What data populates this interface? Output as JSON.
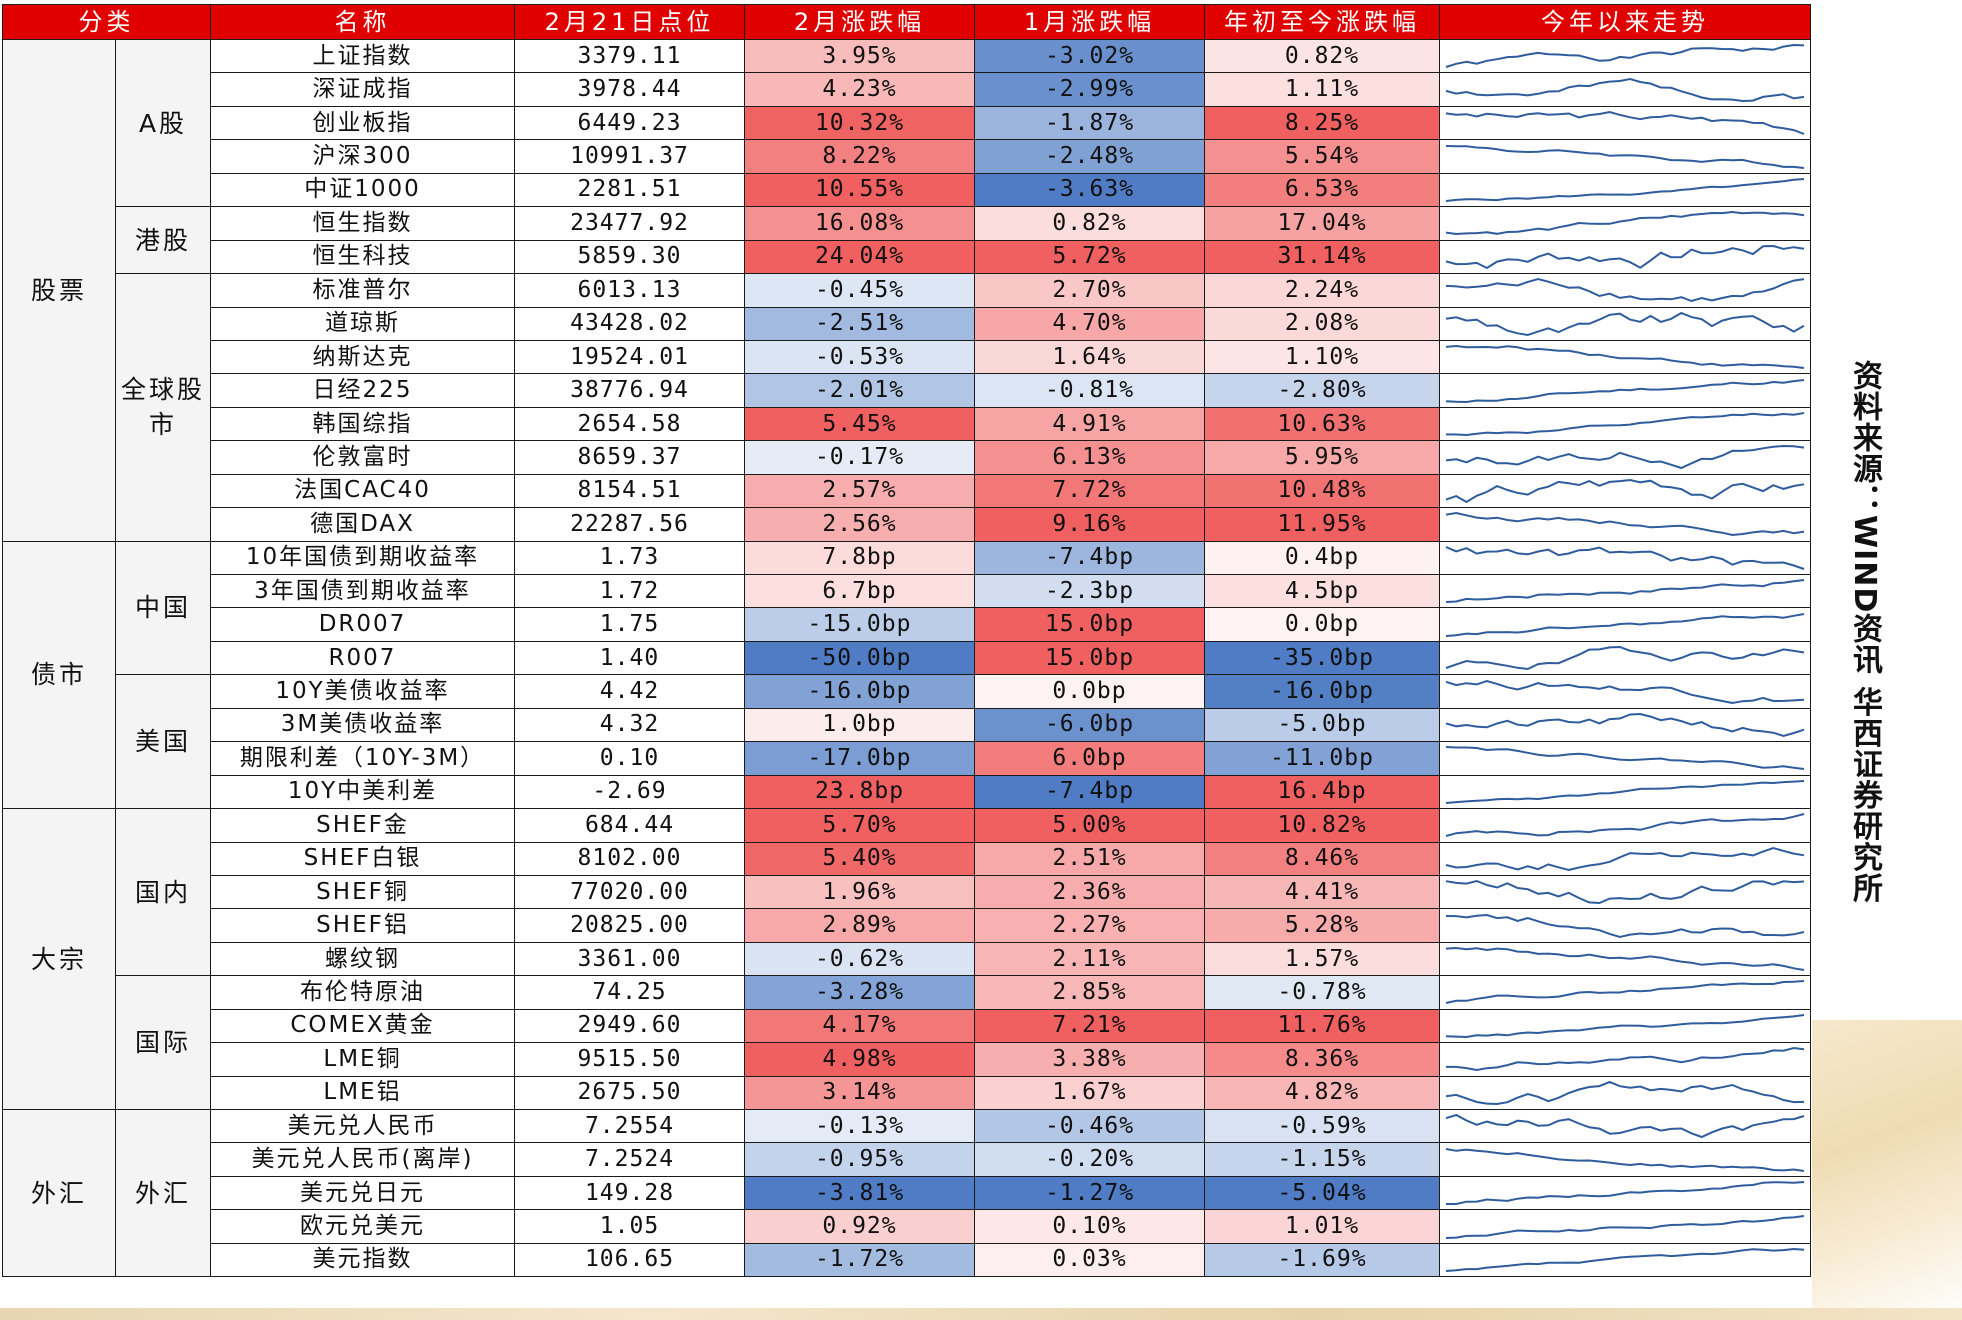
{
  "headers": [
    "分类",
    "名称",
    "2月21日点位",
    "2月涨跌幅",
    "1月涨跌幅",
    "年初至今涨跌幅",
    "今年以来走势"
  ],
  "source_note": "资料来源：WIND资讯 华西证券研究所",
  "colors": {
    "header_bg": "#e00000",
    "header_text": "#ffffff",
    "sparkline": "#2f5c9c",
    "neg_max": "#4f7cc4",
    "pos_max": "#f06060"
  },
  "categories": [
    {
      "label": "股票",
      "rows": 15,
      "subs": [
        {
          "label": "A股",
          "rows": 5
        },
        {
          "label": "港股",
          "rows": 2
        },
        {
          "label": "全球股市",
          "rows": 8
        }
      ]
    },
    {
      "label": "债市",
      "rows": 8,
      "subs": [
        {
          "label": "中国",
          "rows": 4
        },
        {
          "label": "美国",
          "rows": 4
        }
      ]
    },
    {
      "label": "大宗",
      "rows": 9,
      "subs": [
        {
          "label": "国内",
          "rows": 5
        },
        {
          "label": "国际",
          "rows": 4
        }
      ]
    },
    {
      "label": "外汇",
      "rows": 5,
      "subs": [
        {
          "label": "外汇",
          "rows": 5
        }
      ]
    }
  ],
  "rows": [
    {
      "name": "上证指数",
      "level": "3379.11",
      "feb": "3.95%",
      "jan": "-3.02%",
      "ytd": "0.82%"
    },
    {
      "name": "深证成指",
      "level": "3978.44",
      "feb": "4.23%",
      "jan": "-2.99%",
      "ytd": "1.11%"
    },
    {
      "name": "创业板指",
      "level": "6449.23",
      "feb": "10.32%",
      "jan": "-1.87%",
      "ytd": "8.25%"
    },
    {
      "name": "沪深300",
      "level": "10991.37",
      "feb": "8.22%",
      "jan": "-2.48%",
      "ytd": "5.54%"
    },
    {
      "name": "中证1000",
      "level": "2281.51",
      "feb": "10.55%",
      "jan": "-3.63%",
      "ytd": "6.53%"
    },
    {
      "name": "恒生指数",
      "level": "23477.92",
      "feb": "16.08%",
      "jan": "0.82%",
      "ytd": "17.04%"
    },
    {
      "name": "恒生科技",
      "level": "5859.30",
      "feb": "24.04%",
      "jan": "5.72%",
      "ytd": "31.14%"
    },
    {
      "name": "标准普尔",
      "level": "6013.13",
      "feb": "-0.45%",
      "jan": "2.70%",
      "ytd": "2.24%"
    },
    {
      "name": "道琼斯",
      "level": "43428.02",
      "feb": "-2.51%",
      "jan": "4.70%",
      "ytd": "2.08%"
    },
    {
      "name": "纳斯达克",
      "level": "19524.01",
      "feb": "-0.53%",
      "jan": "1.64%",
      "ytd": "1.10%"
    },
    {
      "name": "日经225",
      "level": "38776.94",
      "feb": "-2.01%",
      "jan": "-0.81%",
      "ytd": "-2.80%"
    },
    {
      "name": "韩国综指",
      "level": "2654.58",
      "feb": "5.45%",
      "jan": "4.91%",
      "ytd": "10.63%"
    },
    {
      "name": "伦敦富时",
      "level": "8659.37",
      "feb": "-0.17%",
      "jan": "6.13%",
      "ytd": "5.95%"
    },
    {
      "name": "法国CAC40",
      "level": "8154.51",
      "feb": "2.57%",
      "jan": "7.72%",
      "ytd": "10.48%"
    },
    {
      "name": "德国DAX",
      "level": "22287.56",
      "feb": "2.56%",
      "jan": "9.16%",
      "ytd": "11.95%"
    },
    {
      "name": "10年国债到期收益率",
      "level": "1.73",
      "feb": "7.8bp",
      "jan": "-7.4bp",
      "ytd": "0.4bp"
    },
    {
      "name": "3年国债到期收益率",
      "level": "1.72",
      "feb": "6.7bp",
      "jan": "-2.3bp",
      "ytd": "4.5bp"
    },
    {
      "name": "DR007",
      "level": "1.75",
      "feb": "-15.0bp",
      "jan": "15.0bp",
      "ytd": "0.0bp"
    },
    {
      "name": "R007",
      "level": "1.40",
      "feb": "-50.0bp",
      "jan": "15.0bp",
      "ytd": "-35.0bp"
    },
    {
      "name": "10Y美债收益率",
      "level": "4.42",
      "feb": "-16.0bp",
      "jan": "0.0bp",
      "ytd": "-16.0bp"
    },
    {
      "name": "3M美债收益率",
      "level": "4.32",
      "feb": "1.0bp",
      "jan": "-6.0bp",
      "ytd": "-5.0bp"
    },
    {
      "name": "期限利差（10Y-3M）",
      "level": "0.10",
      "feb": "-17.0bp",
      "jan": "6.0bp",
      "ytd": "-11.0bp"
    },
    {
      "name": "10Y中美利差",
      "level": "-2.69",
      "feb": "23.8bp",
      "jan": "-7.4bp",
      "ytd": "16.4bp"
    },
    {
      "name": "SHEF金",
      "level": "684.44",
      "feb": "5.70%",
      "jan": "5.00%",
      "ytd": "10.82%"
    },
    {
      "name": "SHEF白银",
      "level": "8102.00",
      "feb": "5.40%",
      "jan": "2.51%",
      "ytd": "8.46%"
    },
    {
      "name": "SHEF铜",
      "level": "77020.00",
      "feb": "1.96%",
      "jan": "2.36%",
      "ytd": "4.41%"
    },
    {
      "name": "SHEF铝",
      "level": "20825.00",
      "feb": "2.89%",
      "jan": "2.27%",
      "ytd": "5.28%"
    },
    {
      "name": "螺纹钢",
      "level": "3361.00",
      "feb": "-0.62%",
      "jan": "2.11%",
      "ytd": "1.57%"
    },
    {
      "name": "布伦特原油",
      "level": "74.25",
      "feb": "-3.28%",
      "jan": "2.85%",
      "ytd": "-0.78%"
    },
    {
      "name": "COMEX黄金",
      "level": "2949.60",
      "feb": "4.17%",
      "jan": "7.21%",
      "ytd": "11.76%"
    },
    {
      "name": "LME铜",
      "level": "9515.50",
      "feb": "4.98%",
      "jan": "3.38%",
      "ytd": "8.36%"
    },
    {
      "name": "LME铝",
      "level": "2675.50",
      "feb": "3.14%",
      "jan": "1.67%",
      "ytd": "4.82%"
    },
    {
      "name": "美元兑人民币",
      "level": "7.2554",
      "feb": "-0.13%",
      "jan": "-0.46%",
      "ytd": "-0.59%"
    },
    {
      "name": "美元兑人民币(离岸)",
      "level": "7.2524",
      "feb": "-0.95%",
      "jan": "-0.20%",
      "ytd": "-1.15%"
    },
    {
      "name": "美元兑日元",
      "level": "149.28",
      "feb": "-3.81%",
      "jan": "-1.27%",
      "ytd": "-5.04%"
    },
    {
      "name": "欧元兑美元",
      "level": "1.05",
      "feb": "0.92%",
      "jan": "0.10%",
      "ytd": "1.01%"
    },
    {
      "name": "美元指数",
      "level": "106.65",
      "feb": "-1.72%",
      "jan": "0.03%",
      "ytd": "-1.69%"
    }
  ],
  "chart_data": {
    "type": "table",
    "columns": [
      "分类",
      "名称",
      "2月21日点位",
      "2月涨跌幅",
      "1月涨跌幅",
      "年初至今涨跌幅",
      "今年以来走势"
    ],
    "note": "数值见 rows；涨跌幅单元格为热力着色（红=涨，蓝=跌，按列内分组缩放）"
  }
}
